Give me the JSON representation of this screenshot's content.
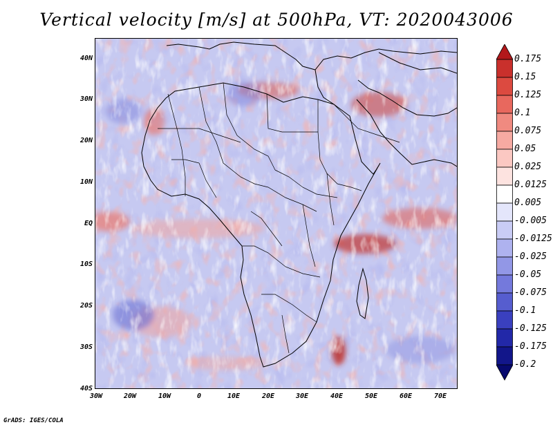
{
  "title": "Vertical velocity [m/s] at 500hPa, VT: 2020043006",
  "credit": "GrADS: IGES/COLA",
  "map": {
    "lat_labels": [
      "40N",
      "30N",
      "20N",
      "10N",
      "EQ",
      "10S",
      "20S",
      "30S",
      "40S"
    ],
    "lon_labels": [
      "30W",
      "20W",
      "10W",
      "0",
      "10E",
      "20E",
      "30E",
      "40E",
      "50E",
      "60E",
      "70E"
    ],
    "lat_range": [
      -40,
      45
    ],
    "lon_range": [
      -30,
      75
    ]
  },
  "colorbar": {
    "labels": [
      "0.175",
      "0.15",
      "0.125",
      "0.1",
      "0.075",
      "0.05",
      "0.025",
      "0.0125",
      "0.005",
      "-0.005",
      "-0.0125",
      "-0.025",
      "-0.05",
      "-0.075",
      "-0.1",
      "-0.125",
      "-0.175",
      "-0.2"
    ],
    "colors": [
      "#b2181b",
      "#c9302c",
      "#dc4a40",
      "#e8685e",
      "#f08a80",
      "#f6aaa2",
      "#fbc8c2",
      "#fde3e0",
      "#ffffff",
      "#e4e6fb",
      "#c9ccf5",
      "#aeb2ef",
      "#9297e6",
      "#7479dc",
      "#565dcf",
      "#3a40bf",
      "#2228a8",
      "#12168a",
      "#07096e"
    ]
  }
}
